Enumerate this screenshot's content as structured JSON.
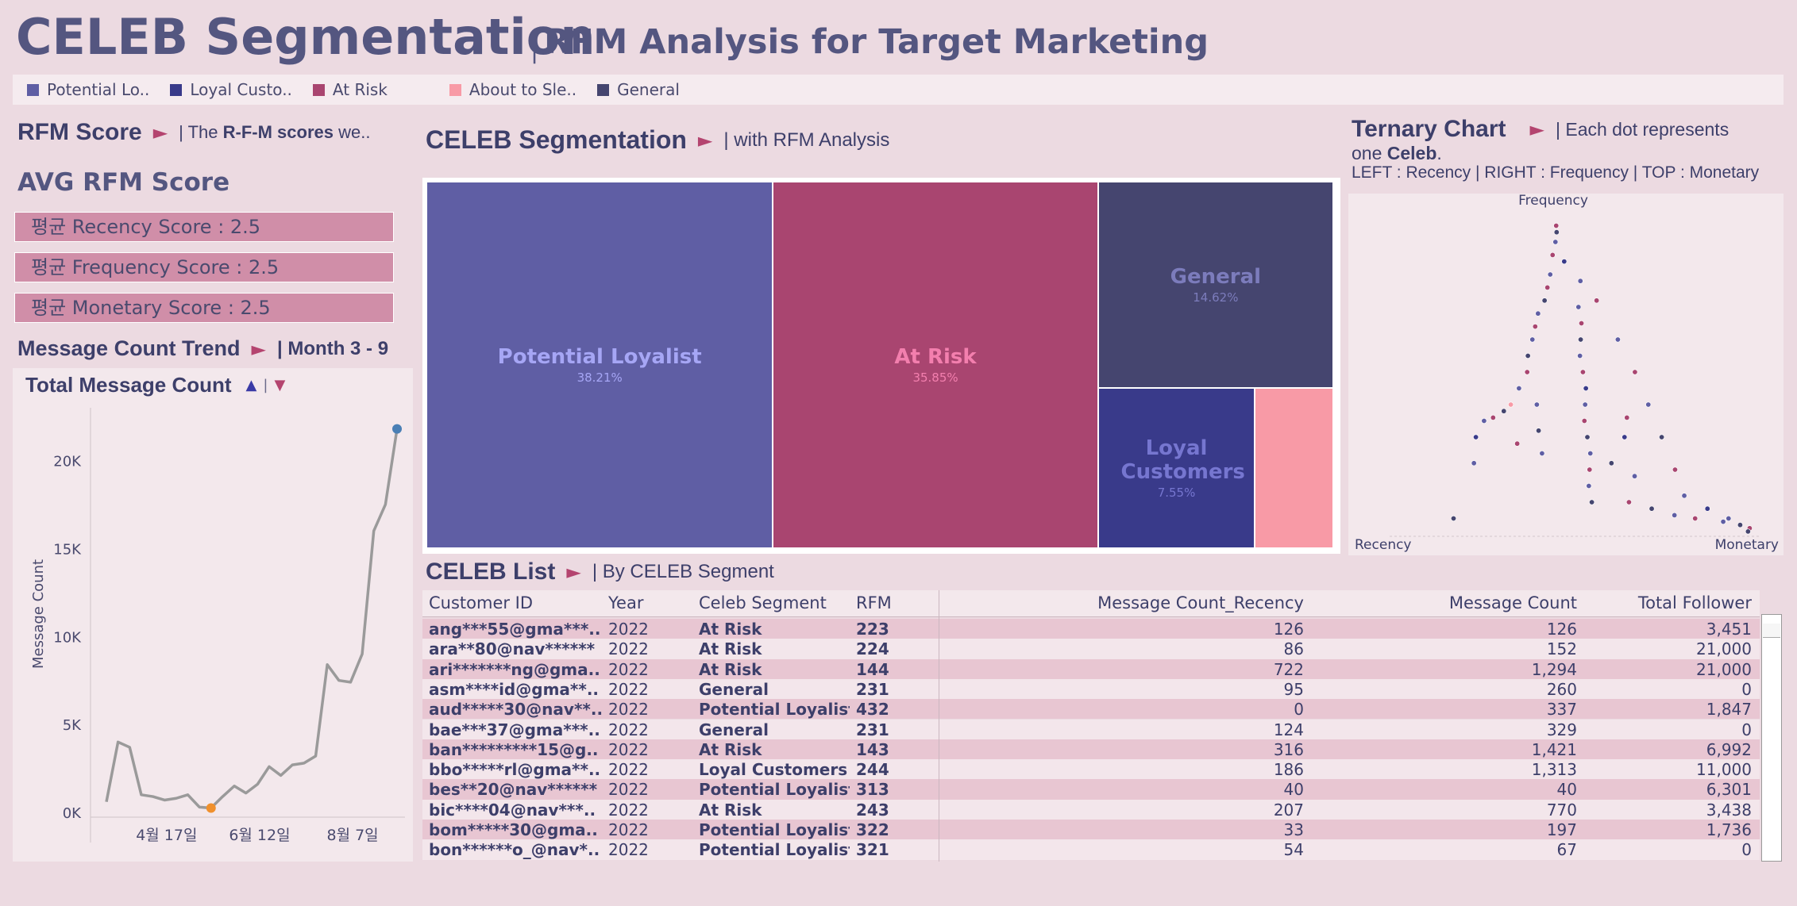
{
  "header": {
    "title": "CELEB Segmentation",
    "separator": "|",
    "subtitle": "RFM Analysis for Target Marketing"
  },
  "legend": [
    {
      "label": "Potential Lo..",
      "color": "#5f5ea4"
    },
    {
      "label": "Loyal Custo..",
      "color": "#393a8a"
    },
    {
      "label": "At Risk",
      "color": "#a94570"
    },
    {
      "label": "About to Sle..",
      "color": "#f89aa6"
    },
    {
      "label": "General",
      "color": "#45456f"
    }
  ],
  "rfm_section": {
    "title": "RFM Score",
    "play": "►",
    "sub_prefix": "| The ",
    "sub_bold": "R-F-M scores",
    "sub_suffix": " we..",
    "avg_title": "AVG RFM Score",
    "scores": [
      "평균 Recency Score : 2.5",
      "평균 Frequency Score : 2.5",
      "평균 Monetary Score : 2.5"
    ]
  },
  "trend_section": {
    "title": "Message Count Trend",
    "play": "►",
    "sub": "| Month 3 - 9",
    "chart_title": "Total Message Count",
    "up": "▲",
    "bar": "|",
    "down": "▼"
  },
  "treemap_section": {
    "title": "CELEB Segmentation",
    "play": "►",
    "sub": "| with RFM Analysis"
  },
  "ternary_section": {
    "title": "Ternary Chart",
    "play": "►",
    "sub": "| Each dot represents",
    "line2_prefix": "one ",
    "line2_bold": "Celeb",
    "line2_suffix": ".",
    "line3": "LEFT : Recency | RIGHT : Frequency | TOP : Monetary"
  },
  "list_section": {
    "title": "CELEB List",
    "play": "►",
    "sub": "| By CELEB Segment"
  },
  "chart_data": [
    {
      "type": "line",
      "title": "Total Message Count",
      "ylabel": "Message Count",
      "xlabel": "",
      "ylim": [
        0,
        23000
      ],
      "y_ticks": [
        0,
        5000,
        10000,
        15000,
        20000
      ],
      "y_tick_labels": [
        "0K",
        "5K",
        "10K",
        "15K",
        "20K"
      ],
      "x_tick_labels": [
        "4월 17일",
        "6월 12일",
        "8월 7일"
      ],
      "x_tick_index": [
        6,
        14,
        22
      ],
      "values": [
        600,
        4000,
        3700,
        1000,
        900,
        700,
        800,
        1000,
        300,
        250,
        900,
        1500,
        1100,
        1600,
        2600,
        2100,
        2700,
        2800,
        3200,
        8400,
        7500,
        7400,
        9000,
        16000,
        17500,
        21800
      ],
      "min_index": 9,
      "max_index": 25,
      "min_color": "#f0902d",
      "max_color": "#4a7fb5",
      "line_color": "#9a9a9a"
    },
    {
      "type": "treemap",
      "title": "CELEB Segmentation",
      "items": [
        {
          "name": "Potential Loyalist",
          "value": 38.21,
          "label": "38.21%",
          "color": "#5f5ea4",
          "text_color": "#a6a6f5"
        },
        {
          "name": "At Risk",
          "value": 35.85,
          "label": "35.85%",
          "color": "#a94570",
          "text_color": "#f37fae"
        },
        {
          "name": "General",
          "value": 14.62,
          "label": "14.62%",
          "color": "#45456f",
          "text_color": "#7c7cbc"
        },
        {
          "name": "Loyal Customers",
          "value": 7.55,
          "label": "7.55%",
          "color": "#393a8a",
          "text_color": "#7676d0"
        },
        {
          "name": "About to Sleep",
          "value": 3.77,
          "label": "",
          "color": "#f89aa6",
          "text_color": "#f89aa6"
        }
      ]
    },
    {
      "type": "scatter",
      "title": "Ternary Chart",
      "corner_labels": {
        "top": "Frequency",
        "left": "Recency",
        "right": "Monetary"
      },
      "note": "points are ternary coordinates (recency, frequency, monetary shares)",
      "points": [
        {
          "r": 0.02,
          "f": 0.95,
          "m": 0.03,
          "seg": "At Risk"
        },
        {
          "r": 0.03,
          "f": 0.93,
          "m": 0.04,
          "seg": "General"
        },
        {
          "r": 0.05,
          "f": 0.9,
          "m": 0.05,
          "seg": "Potential Loyalist"
        },
        {
          "r": 0.08,
          "f": 0.86,
          "m": 0.06,
          "seg": "At Risk"
        },
        {
          "r": 0.06,
          "f": 0.84,
          "m": 0.1,
          "seg": "Loyal Customers"
        },
        {
          "r": 0.12,
          "f": 0.8,
          "m": 0.08,
          "seg": "Potential Loyalist"
        },
        {
          "r": 0.15,
          "f": 0.76,
          "m": 0.09,
          "seg": "At Risk"
        },
        {
          "r": 0.18,
          "f": 0.72,
          "m": 0.1,
          "seg": "General"
        },
        {
          "r": 0.22,
          "f": 0.68,
          "m": 0.1,
          "seg": "Potential Loyalist"
        },
        {
          "r": 0.25,
          "f": 0.64,
          "m": 0.11,
          "seg": "At Risk"
        },
        {
          "r": 0.28,
          "f": 0.6,
          "m": 0.12,
          "seg": "Potential Loyalist"
        },
        {
          "r": 0.32,
          "f": 0.55,
          "m": 0.13,
          "seg": "General"
        },
        {
          "r": 0.35,
          "f": 0.5,
          "m": 0.15,
          "seg": "At Risk"
        },
        {
          "r": 0.4,
          "f": 0.45,
          "m": 0.15,
          "seg": "Potential Loyalist"
        },
        {
          "r": 0.45,
          "f": 0.4,
          "m": 0.15,
          "seg": "About to Sleep"
        },
        {
          "r": 0.48,
          "f": 0.38,
          "m": 0.14,
          "seg": "General"
        },
        {
          "r": 0.52,
          "f": 0.36,
          "m": 0.12,
          "seg": "At Risk"
        },
        {
          "r": 0.55,
          "f": 0.35,
          "m": 0.1,
          "seg": "Potential Loyalist"
        },
        {
          "r": 0.6,
          "f": 0.3,
          "m": 0.1,
          "seg": "Loyal Customers"
        },
        {
          "r": 0.65,
          "f": 0.22,
          "m": 0.13,
          "seg": "Potential Loyalist"
        },
        {
          "r": 0.8,
          "f": 0.05,
          "m": 0.15,
          "seg": "General"
        },
        {
          "r": 0.1,
          "f": 0.7,
          "m": 0.2,
          "seg": "Potential Loyalist"
        },
        {
          "r": 0.12,
          "f": 0.65,
          "m": 0.23,
          "seg": "At Risk"
        },
        {
          "r": 0.15,
          "f": 0.6,
          "m": 0.25,
          "seg": "General"
        },
        {
          "r": 0.18,
          "f": 0.55,
          "m": 0.27,
          "seg": "Potential Loyalist"
        },
        {
          "r": 0.2,
          "f": 0.5,
          "m": 0.3,
          "seg": "At Risk"
        },
        {
          "r": 0.22,
          "f": 0.45,
          "m": 0.33,
          "seg": "Loyal Customers"
        },
        {
          "r": 0.25,
          "f": 0.4,
          "m": 0.35,
          "seg": "Potential Loyalist"
        },
        {
          "r": 0.28,
          "f": 0.35,
          "m": 0.37,
          "seg": "At Risk"
        },
        {
          "r": 0.3,
          "f": 0.3,
          "m": 0.4,
          "seg": "General"
        },
        {
          "r": 0.32,
          "f": 0.25,
          "m": 0.43,
          "seg": "Potential Loyalist"
        },
        {
          "r": 0.35,
          "f": 0.2,
          "m": 0.45,
          "seg": "At Risk"
        },
        {
          "r": 0.38,
          "f": 0.15,
          "m": 0.47,
          "seg": "Potential Loyalist"
        },
        {
          "r": 0.4,
          "f": 0.1,
          "m": 0.5,
          "seg": "General"
        },
        {
          "r": 0.05,
          "f": 0.6,
          "m": 0.35,
          "seg": "Potential Loyalist"
        },
        {
          "r": 0.06,
          "f": 0.5,
          "m": 0.44,
          "seg": "At Risk"
        },
        {
          "r": 0.08,
          "f": 0.4,
          "m": 0.52,
          "seg": "Potential Loyalist"
        },
        {
          "r": 0.1,
          "f": 0.3,
          "m": 0.6,
          "seg": "General"
        },
        {
          "r": 0.12,
          "f": 0.2,
          "m": 0.68,
          "seg": "At Risk"
        },
        {
          "r": 0.14,
          "f": 0.12,
          "m": 0.74,
          "seg": "Potential Loyalist"
        },
        {
          "r": 0.1,
          "f": 0.08,
          "m": 0.82,
          "seg": "Loyal Customers"
        },
        {
          "r": 0.06,
          "f": 0.05,
          "m": 0.89,
          "seg": "Potential Loyalist"
        },
        {
          "r": 0.04,
          "f": 0.03,
          "m": 0.93,
          "seg": "General"
        },
        {
          "r": 0.02,
          "f": 0.02,
          "m": 0.96,
          "seg": "At Risk"
        },
        {
          "r": 0.03,
          "f": 0.01,
          "m": 0.96,
          "seg": "General"
        },
        {
          "r": 0.08,
          "f": 0.04,
          "m": 0.88,
          "seg": "Potential Loyalist"
        },
        {
          "r": 0.15,
          "f": 0.05,
          "m": 0.8,
          "seg": "At Risk"
        },
        {
          "r": 0.2,
          "f": 0.06,
          "m": 0.74,
          "seg": "Potential Loyalist"
        },
        {
          "r": 0.25,
          "f": 0.08,
          "m": 0.67,
          "seg": "General"
        },
        {
          "r": 0.3,
          "f": 0.1,
          "m": 0.6,
          "seg": "At Risk"
        },
        {
          "r": 0.45,
          "f": 0.25,
          "m": 0.3,
          "seg": "Potential Loyalist"
        },
        {
          "r": 0.5,
          "f": 0.28,
          "m": 0.22,
          "seg": "At Risk"
        },
        {
          "r": 0.42,
          "f": 0.32,
          "m": 0.26,
          "seg": "General"
        },
        {
          "r": 0.38,
          "f": 0.4,
          "m": 0.22,
          "seg": "Potential Loyalist"
        },
        {
          "r": 0.05,
          "f": 0.78,
          "m": 0.17,
          "seg": "Potential Loyalist"
        },
        {
          "r": 0.04,
          "f": 0.72,
          "m": 0.24,
          "seg": "At Risk"
        },
        {
          "r": 0.2,
          "f": 0.3,
          "m": 0.5,
          "seg": "Loyal Customers"
        },
        {
          "r": 0.16,
          "f": 0.36,
          "m": 0.48,
          "seg": "At Risk"
        },
        {
          "r": 0.24,
          "f": 0.18,
          "m": 0.58,
          "seg": "Potential Loyalist"
        },
        {
          "r": 0.28,
          "f": 0.22,
          "m": 0.5,
          "seg": "General"
        }
      ]
    }
  ],
  "table": {
    "columns": [
      "Customer ID",
      "Year",
      "Celeb Segment",
      "RFM",
      "Message Count_Recency",
      "Message Count",
      "Total Follower"
    ],
    "rows": [
      [
        "ang***55@gma***..",
        "2022",
        "At Risk",
        "223",
        "126",
        "126",
        "3,451"
      ],
      [
        "ara**80@nav******",
        "2022",
        "At Risk",
        "224",
        "86",
        "152",
        "21,000"
      ],
      [
        "ari*******ng@gma..",
        "2022",
        "At Risk",
        "144",
        "722",
        "1,294",
        "21,000"
      ],
      [
        "asm****id@gma**..",
        "2022",
        "General",
        "231",
        "95",
        "260",
        "0"
      ],
      [
        "aud*****30@nav**..",
        "2022",
        "Potential Loyalist",
        "432",
        "0",
        "337",
        "1,847"
      ],
      [
        "bae***37@gma***..",
        "2022",
        "General",
        "231",
        "124",
        "329",
        "0"
      ],
      [
        "ban*********15@g..",
        "2022",
        "At Risk",
        "143",
        "316",
        "1,421",
        "6,992"
      ],
      [
        "bbo*****rl@gma**..",
        "2022",
        "Loyal Customers",
        "244",
        "186",
        "1,313",
        "11,000"
      ],
      [
        "bes**20@nav******",
        "2022",
        "Potential Loyalist",
        "313",
        "40",
        "40",
        "6,301"
      ],
      [
        "bic****04@nav***..",
        "2022",
        "At Risk",
        "243",
        "207",
        "770",
        "3,438"
      ],
      [
        "bom*****30@gma..",
        "2022",
        "Potential Loyalist",
        "322",
        "33",
        "197",
        "1,736"
      ],
      [
        "bon******o_@nav*..",
        "2022",
        "Potential Loyalist",
        "321",
        "54",
        "67",
        "0"
      ]
    ]
  }
}
